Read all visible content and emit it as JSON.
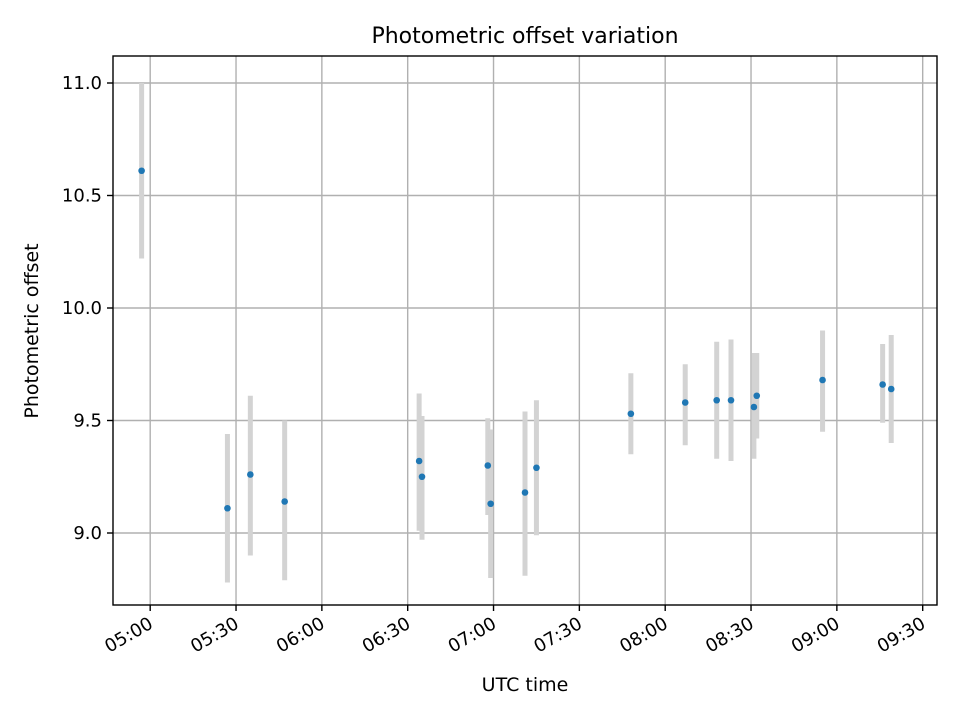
{
  "chart_data": {
    "type": "scatter",
    "title": "Photometric offset variation",
    "xlabel": "UTC time",
    "ylabel": "Photometric offset",
    "xlim": [
      "04:47",
      "09:35"
    ],
    "ylim": [
      8.68,
      11.12
    ],
    "x_ticks": [
      "05:00",
      "05:30",
      "06:00",
      "06:30",
      "07:00",
      "07:30",
      "08:00",
      "08:30",
      "09:00",
      "09:30"
    ],
    "y_ticks": [
      "9.0",
      "9.5",
      "10.0",
      "10.5",
      "11.0"
    ],
    "grid": true,
    "series": [
      {
        "marker_color": "#1f77b4",
        "errorbar_color": "#d3d3d3",
        "points": [
          {
            "x": "04:57",
            "y": 10.61,
            "ylow": 10.22,
            "yhigh": 11.0
          },
          {
            "x": "05:27",
            "y": 9.11,
            "ylow": 8.78,
            "yhigh": 9.44
          },
          {
            "x": "05:35",
            "y": 9.26,
            "ylow": 8.9,
            "yhigh": 9.61
          },
          {
            "x": "05:47",
            "y": 9.14,
            "ylow": 8.79,
            "yhigh": 9.5
          },
          {
            "x": "06:34",
            "y": 9.32,
            "ylow": 9.01,
            "yhigh": 9.62
          },
          {
            "x": "06:35",
            "y": 9.25,
            "ylow": 8.97,
            "yhigh": 9.52
          },
          {
            "x": "06:58",
            "y": 9.3,
            "ylow": 9.08,
            "yhigh": 9.51
          },
          {
            "x": "06:59",
            "y": 9.13,
            "ylow": 8.8,
            "yhigh": 9.46
          },
          {
            "x": "07:11",
            "y": 9.18,
            "ylow": 8.81,
            "yhigh": 9.54
          },
          {
            "x": "07:15",
            "y": 9.29,
            "ylow": 8.99,
            "yhigh": 9.59
          },
          {
            "x": "07:48",
            "y": 9.53,
            "ylow": 9.35,
            "yhigh": 9.71
          },
          {
            "x": "08:07",
            "y": 9.58,
            "ylow": 9.39,
            "yhigh": 9.75
          },
          {
            "x": "08:18",
            "y": 9.59,
            "ylow": 9.33,
            "yhigh": 9.85
          },
          {
            "x": "08:23",
            "y": 9.59,
            "ylow": 9.32,
            "yhigh": 9.86
          },
          {
            "x": "08:31",
            "y": 9.56,
            "ylow": 9.33,
            "yhigh": 9.8
          },
          {
            "x": "08:32",
            "y": 9.61,
            "ylow": 9.42,
            "yhigh": 9.8
          },
          {
            "x": "08:55",
            "y": 9.68,
            "ylow": 9.45,
            "yhigh": 9.9
          },
          {
            "x": "09:16",
            "y": 9.66,
            "ylow": 9.49,
            "yhigh": 9.84
          },
          {
            "x": "09:19",
            "y": 9.64,
            "ylow": 9.4,
            "yhigh": 9.88
          }
        ]
      }
    ]
  }
}
